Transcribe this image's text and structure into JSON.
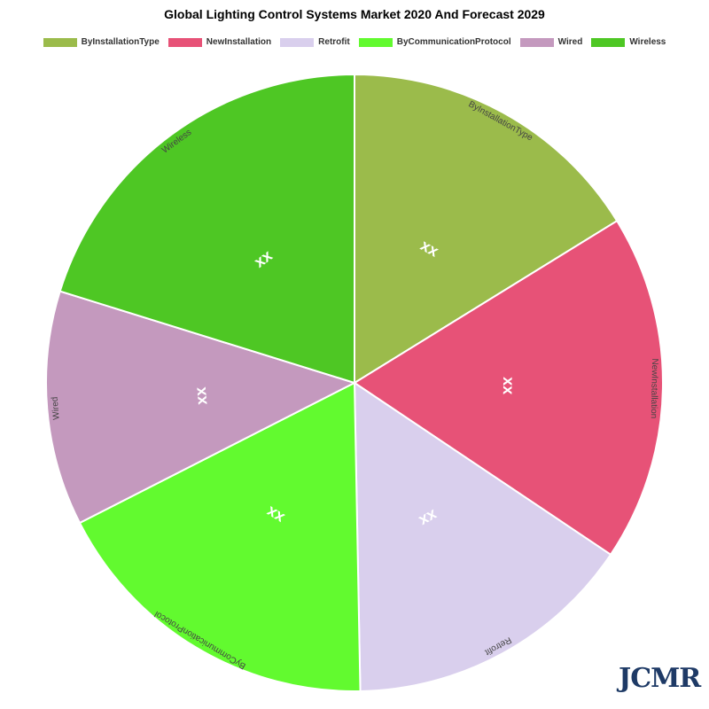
{
  "chart_data": {
    "type": "pie",
    "title": "Global Lighting Control Systems Market 2020 And Forecast 2029",
    "slices": [
      {
        "label": "ByInstallationType",
        "value": 16.2,
        "display": "xx",
        "color": "#9bbb4b"
      },
      {
        "label": "NewInstallation",
        "value": 18.2,
        "display": "xx",
        "color": "#e75277"
      },
      {
        "label": "Retrofit",
        "value": 15.3,
        "display": "xx",
        "color": "#d9cfed"
      },
      {
        "label": "ByCommunicationProtocol",
        "value": 17.8,
        "display": "xx",
        "color": "#62fa2f"
      },
      {
        "label": "Wired",
        "value": 12.3,
        "display": "xx",
        "color": "#c499be"
      },
      {
        "label": "Wireless",
        "value": 20.2,
        "display": "xx",
        "color": "#4ec724"
      }
    ],
    "legend_position": "top-center"
  },
  "legend": [
    {
      "label": "ByInstallationType",
      "color": "#9bbb4b"
    },
    {
      "label": "NewInstallation",
      "color": "#e75277"
    },
    {
      "label": "Retrofit",
      "color": "#d9cfed"
    },
    {
      "label": "ByCommunicationProtocol",
      "color": "#62fa2f"
    },
    {
      "label": "Wired",
      "color": "#c499be"
    },
    {
      "label": "Wireless",
      "color": "#4ec724"
    }
  ],
  "watermark": "JCMR"
}
